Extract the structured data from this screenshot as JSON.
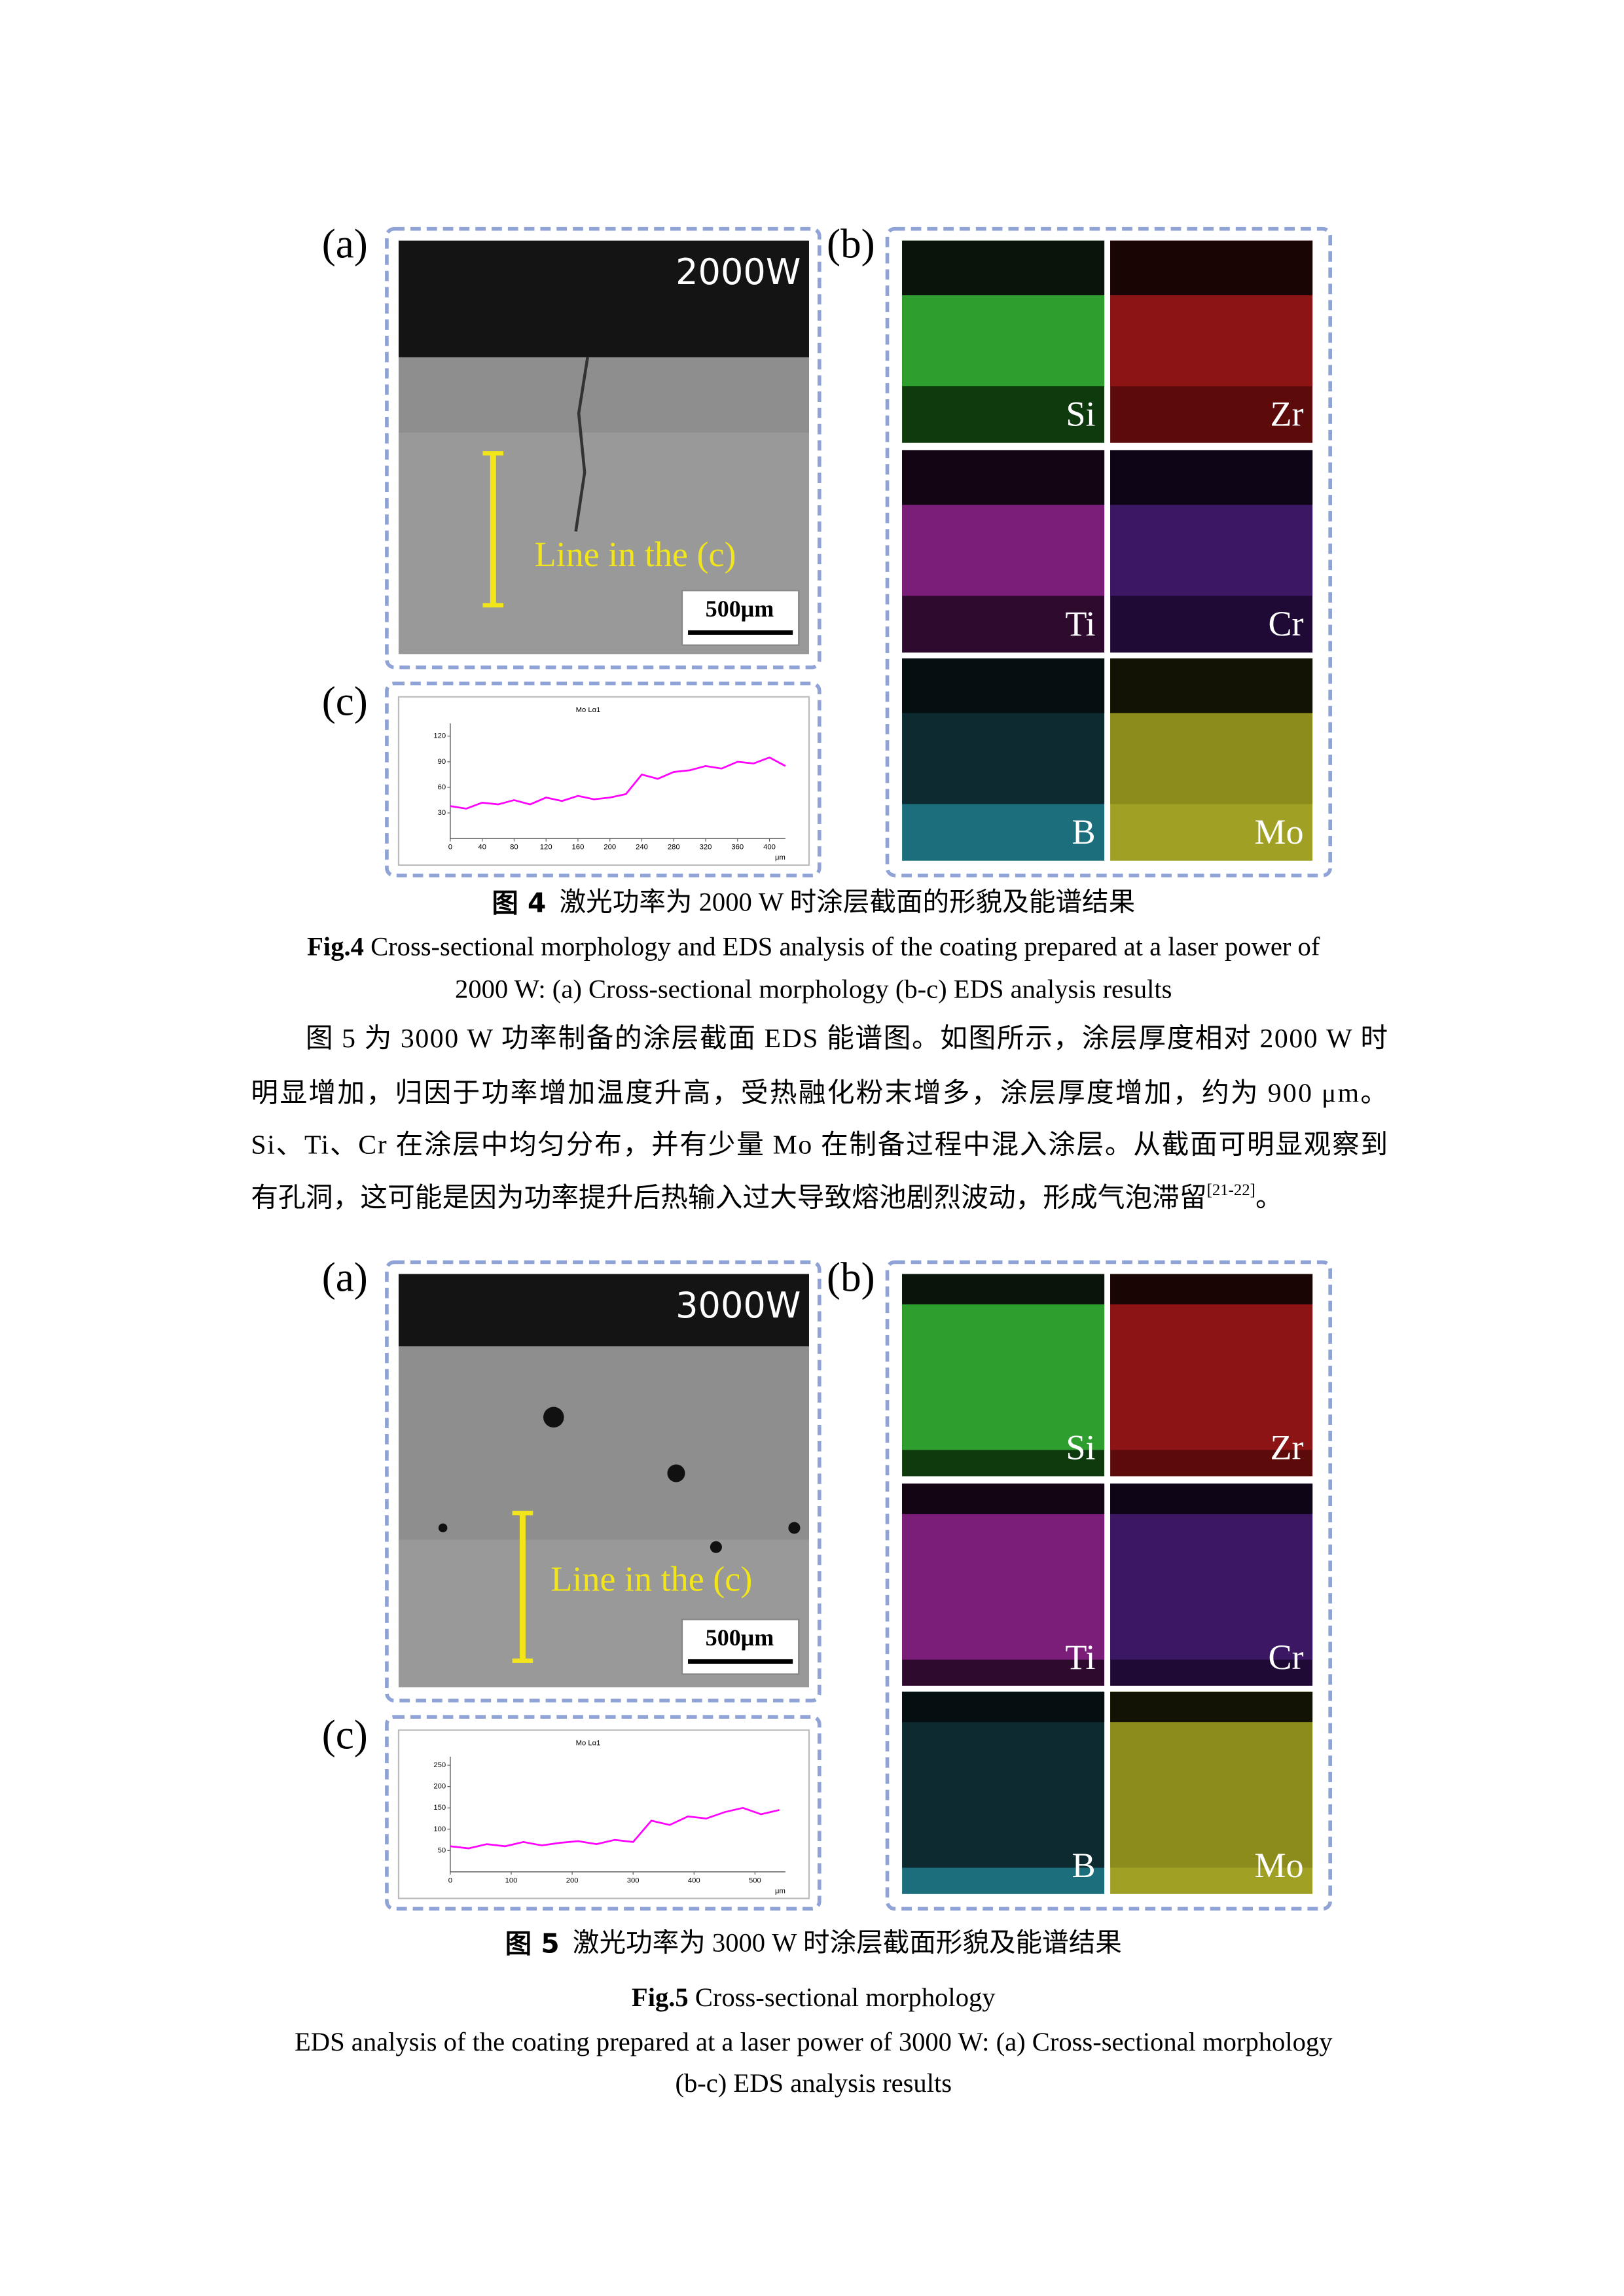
{
  "figures": [
    {
      "panel_a_label": "(a)",
      "panel_b_label": "(b)",
      "panel_c_label": "(c)",
      "power_label": "2000W",
      "line_label": "Line in the (c)",
      "scale_bar": "500μm",
      "maps": [
        "Si",
        "Zr",
        "Ti",
        "Cr",
        "B",
        "Mo"
      ],
      "chart_data": {
        "type": "line",
        "title": "Mo Lα1",
        "color": "#ff00ff",
        "x": [
          0,
          20,
          40,
          60,
          80,
          100,
          120,
          140,
          160,
          180,
          200,
          220,
          240,
          260,
          280,
          300,
          320,
          340,
          360,
          380,
          400,
          420
        ],
        "values": [
          38,
          35,
          42,
          40,
          45,
          40,
          48,
          44,
          50,
          46,
          48,
          52,
          75,
          70,
          78,
          80,
          85,
          82,
          90,
          88,
          95,
          85
        ],
        "xlim": [
          0,
          420
        ],
        "ylim": [
          0,
          135
        ],
        "xticks": [
          0,
          40,
          80,
          120,
          160,
          200,
          240,
          280,
          320,
          360,
          400
        ],
        "yticks": [
          30,
          60,
          90,
          120
        ],
        "x_unit": "μm"
      },
      "caption_cn": {
        "label": "图 4",
        "text": "激光功率为 2000 W 时涂层截面的形貌及能谱结果"
      },
      "caption_en": {
        "label": "Fig.4",
        "lines": [
          "Cross-sectional morphology and EDS analysis of the coating prepared at a laser power of",
          "2000 W: (a) Cross-sectional morphology (b-c) EDS analysis results"
        ]
      }
    },
    {
      "panel_a_label": "(a)",
      "panel_b_label": "(b)",
      "panel_c_label": "(c)",
      "power_label": "3000W",
      "line_label": "Line in the (c)",
      "scale_bar": "500μm",
      "maps": [
        "Si",
        "Zr",
        "Ti",
        "Cr",
        "B",
        "Mo"
      ],
      "chart_data": {
        "type": "line",
        "title": "Mo Lα1",
        "color": "#ff00ff",
        "x": [
          0,
          30,
          60,
          90,
          120,
          150,
          180,
          210,
          240,
          270,
          300,
          330,
          360,
          390,
          420,
          450,
          480,
          510,
          540
        ],
        "values": [
          60,
          55,
          65,
          60,
          70,
          62,
          68,
          72,
          65,
          75,
          70,
          120,
          110,
          130,
          125,
          140,
          150,
          135,
          145
        ],
        "xlim": [
          0,
          550
        ],
        "ylim": [
          0,
          270
        ],
        "xticks": [
          0,
          100,
          200,
          300,
          400,
          500
        ],
        "yticks": [
          50,
          100,
          150,
          200,
          250
        ],
        "x_unit": "μm"
      },
      "caption_cn": {
        "label": "图 5",
        "text": "激光功率为 3000 W 时涂层截面形貌及能谱结果"
      },
      "caption_en": {
        "label": "Fig.5",
        "lines": [
          "Cross-sectional morphology",
          "EDS analysis of the coating prepared at a laser power of 3000 W: (a) Cross-sectional morphology",
          "(b-c) EDS analysis results"
        ]
      }
    }
  ],
  "paragraph": {
    "lines": [
      "图 5 为 3000 W 功率制备的涂层截面 EDS 能谱图。如图所示，涂层厚度相对 2000 W 时",
      "明显增加，归因于功率增加温度升高，受热融化粉末增多，涂层厚度增加，约为 900 μm。",
      "Si、Ti、Cr 在涂层中均匀分布，并有少量 Mo 在制备过程中混入涂层。从截面可明显观察到",
      "有孔洞，这可能是因为功率提升后热输入过大导致熔池剧烈波动，形成气泡滞留"
    ],
    "citation": "[21-22]",
    "end": "。"
  }
}
